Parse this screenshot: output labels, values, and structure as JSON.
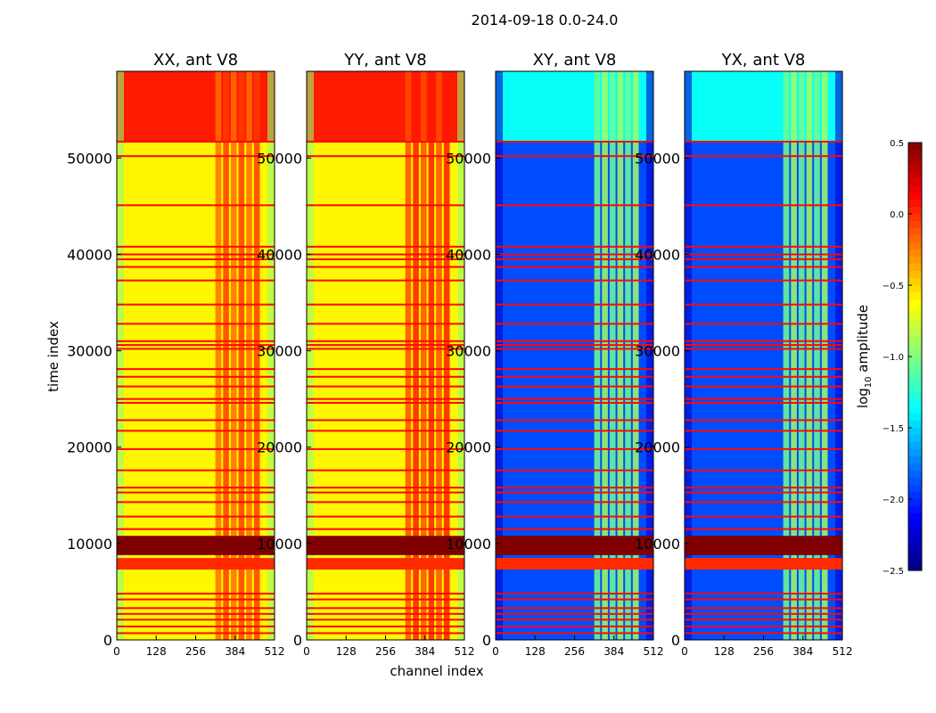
{
  "chart_data": {
    "type": "heatmap",
    "title": "2014-09-18 0.0-24.0",
    "xlabel": "channel index",
    "ylabel": "time index",
    "xlim": [
      0,
      512
    ],
    "ylim": [
      0,
      59000
    ],
    "xticks": [
      "0",
      "128",
      "256",
      "384",
      "512"
    ],
    "yticks": [
      "0",
      "10000",
      "20000",
      "30000",
      "40000",
      "50000"
    ],
    "colorbar": {
      "label": "log10 amplitude",
      "label_main": "log",
      "label_sub": "10",
      "label_tail": " amplitude",
      "range": [
        -2.5,
        0.5
      ],
      "ticks": [
        "0.5",
        "0.0",
        "−0.5",
        "−1.0",
        "−1.5",
        "−2.0",
        "−2.5"
      ],
      "colormap": "jet"
    },
    "panels": [
      {
        "title": "XX, ant V8",
        "base": -0.6,
        "top": 0.05,
        "band": -0.15,
        "lines": 0.0
      },
      {
        "title": "YY, ant V8",
        "base": -0.6,
        "top": 0.05,
        "band": -0.05,
        "lines": 0.0
      },
      {
        "title": "XY, ant V8",
        "base": -1.9,
        "top": -1.35,
        "band": -1.0,
        "lines": 0.0
      },
      {
        "title": "YX, ant V8",
        "base": -1.9,
        "top": -1.35,
        "band": -1.0,
        "lines": 0.0
      }
    ],
    "top_region_start": 51700,
    "active_channels": [
      320,
      470
    ],
    "bright_bands": [
      {
        "from": 7300,
        "to": 8500,
        "value": 0.0
      },
      {
        "from": 8800,
        "to": 10800,
        "value": 0.5
      }
    ],
    "flag_lines": [
      700,
      1400,
      2100,
      2700,
      3300,
      4200,
      4800,
      11500,
      12800,
      14300,
      15300,
      15800,
      17600,
      19800,
      21700,
      22800,
      24600,
      25000,
      26300,
      27300,
      28100,
      30200,
      30600,
      31000,
      32800,
      34800,
      37300,
      38700,
      39500,
      40000,
      40800,
      45100,
      50200,
      51700
    ]
  }
}
